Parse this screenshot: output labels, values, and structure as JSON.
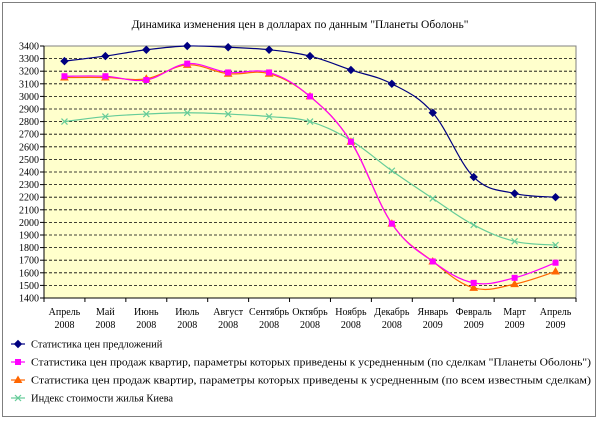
{
  "chart_data": {
    "type": "line",
    "title": "Динамика изменения цен в долларах по данным \"Планеты Оболонь\"",
    "categories": [
      [
        "Апрель",
        "2008"
      ],
      [
        "Май",
        "2008"
      ],
      [
        "Июнь",
        "2008"
      ],
      [
        "Июль",
        "2008"
      ],
      [
        "Август",
        "2008"
      ],
      [
        "Сентябрь",
        "2008"
      ],
      [
        "Октябрь",
        "2008"
      ],
      [
        "Ноябрь",
        "2008"
      ],
      [
        "Декабрь",
        "2008"
      ],
      [
        "Январь",
        "2009"
      ],
      [
        "Февраль",
        "2009"
      ],
      [
        "Март",
        "2009"
      ],
      [
        "Апрель",
        "2009"
      ]
    ],
    "ylim": [
      1400,
      3400
    ],
    "yticks": [
      1400,
      1500,
      1600,
      1700,
      1800,
      1900,
      2000,
      2100,
      2200,
      2300,
      2400,
      2500,
      2600,
      2700,
      2800,
      2900,
      3000,
      3100,
      3200,
      3300,
      3400
    ],
    "grid": true,
    "plot_background": "#ffffcc",
    "legend_position": "bottom",
    "series": [
      {
        "name": "Статистика цен  предложений",
        "color": "#000080",
        "marker": "diamond",
        "values": [
          3280,
          3320,
          3370,
          3400,
          3390,
          3370,
          3320,
          3210,
          3100,
          2870,
          2360,
          2230,
          2200
        ]
      },
      {
        "name": "Статистика цен продаж квартир, параметры которых приведены к усредненным (по сделкам \"Планеты Оболонь\")",
        "color": "#ff00ff",
        "marker": "square",
        "values": [
          3160,
          3160,
          3130,
          3260,
          3190,
          3190,
          3000,
          2640,
          1990,
          1690,
          1520,
          1560,
          1680
        ]
      },
      {
        "name": "Статистика цен продаж квартир, параметры которых приведены к усредненным (по всем известным сделкам)",
        "color": "#ff6600",
        "marker": "triangle",
        "values": [
          3150,
          3150,
          3140,
          3250,
          3180,
          3180,
          3000,
          2640,
          1990,
          1690,
          1480,
          1510,
          1610
        ]
      },
      {
        "name": "Индекс стоимости жилья Киева",
        "color": "#66cc99",
        "marker": "x",
        "values": [
          2800,
          2840,
          2860,
          2870,
          2860,
          2840,
          2800,
          2650,
          2410,
          2190,
          1980,
          1850,
          1820
        ]
      }
    ]
  }
}
